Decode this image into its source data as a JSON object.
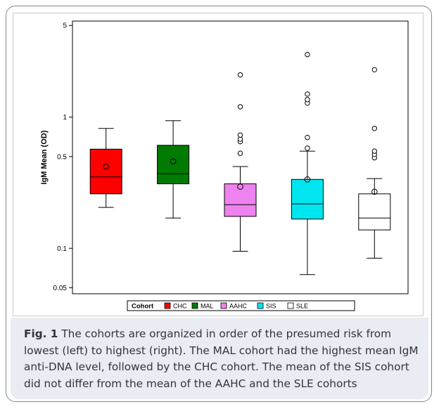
{
  "chart_data": {
    "type": "box",
    "ylabel": "IgM Mean (OD)",
    "yscale": "log",
    "ylim": [
      0.045,
      5.4
    ],
    "y_ticks": [
      {
        "value": 5,
        "label": "5"
      },
      {
        "value": 1,
        "label": "1"
      },
      {
        "value": 0.5,
        "label": "0.5"
      },
      {
        "value": 0.1,
        "label": "0.1"
      },
      {
        "value": 0.05,
        "label": "0.05"
      }
    ],
    "legend": {
      "title": "Cohort",
      "placement": "bottom",
      "entries": [
        {
          "name": "CHC",
          "color": "#ff0000"
        },
        {
          "name": "MAL",
          "color": "#007a00"
        },
        {
          "name": "AAHC",
          "color": "#ee82ee"
        },
        {
          "name": "SIS",
          "color": "#00e6f0"
        },
        {
          "name": "SLE",
          "color": "#ffffff"
        }
      ]
    },
    "grid": false,
    "boxes": [
      {
        "cohort": "CHC",
        "whisker_low": 0.205,
        "q1": 0.26,
        "median": 0.35,
        "q3": 0.57,
        "whisker_high": 0.82,
        "mean": 0.42,
        "outliers": []
      },
      {
        "cohort": "MAL",
        "whisker_low": 0.17,
        "q1": 0.31,
        "median": 0.37,
        "q3": 0.61,
        "whisker_high": 0.94,
        "mean": 0.46,
        "outliers": []
      },
      {
        "cohort": "AAHC",
        "whisker_low": 0.095,
        "q1": 0.175,
        "median": 0.215,
        "q3": 0.31,
        "whisker_high": 0.42,
        "mean": 0.295,
        "outliers": [
          0.53,
          0.65,
          0.68,
          0.73,
          1.2,
          2.1
        ]
      },
      {
        "cohort": "SIS",
        "whisker_low": 0.063,
        "q1": 0.167,
        "median": 0.218,
        "q3": 0.335,
        "whisker_high": 0.55,
        "mean": 0.335,
        "outliers": [
          0.58,
          0.7,
          1.28,
          1.36,
          1.5,
          3.0
        ]
      },
      {
        "cohort": "SLE",
        "whisker_low": 0.084,
        "q1": 0.138,
        "median": 0.17,
        "q3": 0.26,
        "whisker_high": 0.34,
        "mean": 0.27,
        "outliers": [
          0.49,
          0.52,
          0.55,
          0.82,
          2.3
        ]
      }
    ]
  },
  "caption": {
    "label": "Fig. 1",
    "text": "The cohorts are organized in order of the presumed risk from lowest (left) to highest (right). The MAL cohort had the highest mean IgM anti-DNA level, followed by the CHC cohort. The mean of the SIS cohort did not differ from the mean of the AAHC and the SLE cohorts"
  }
}
